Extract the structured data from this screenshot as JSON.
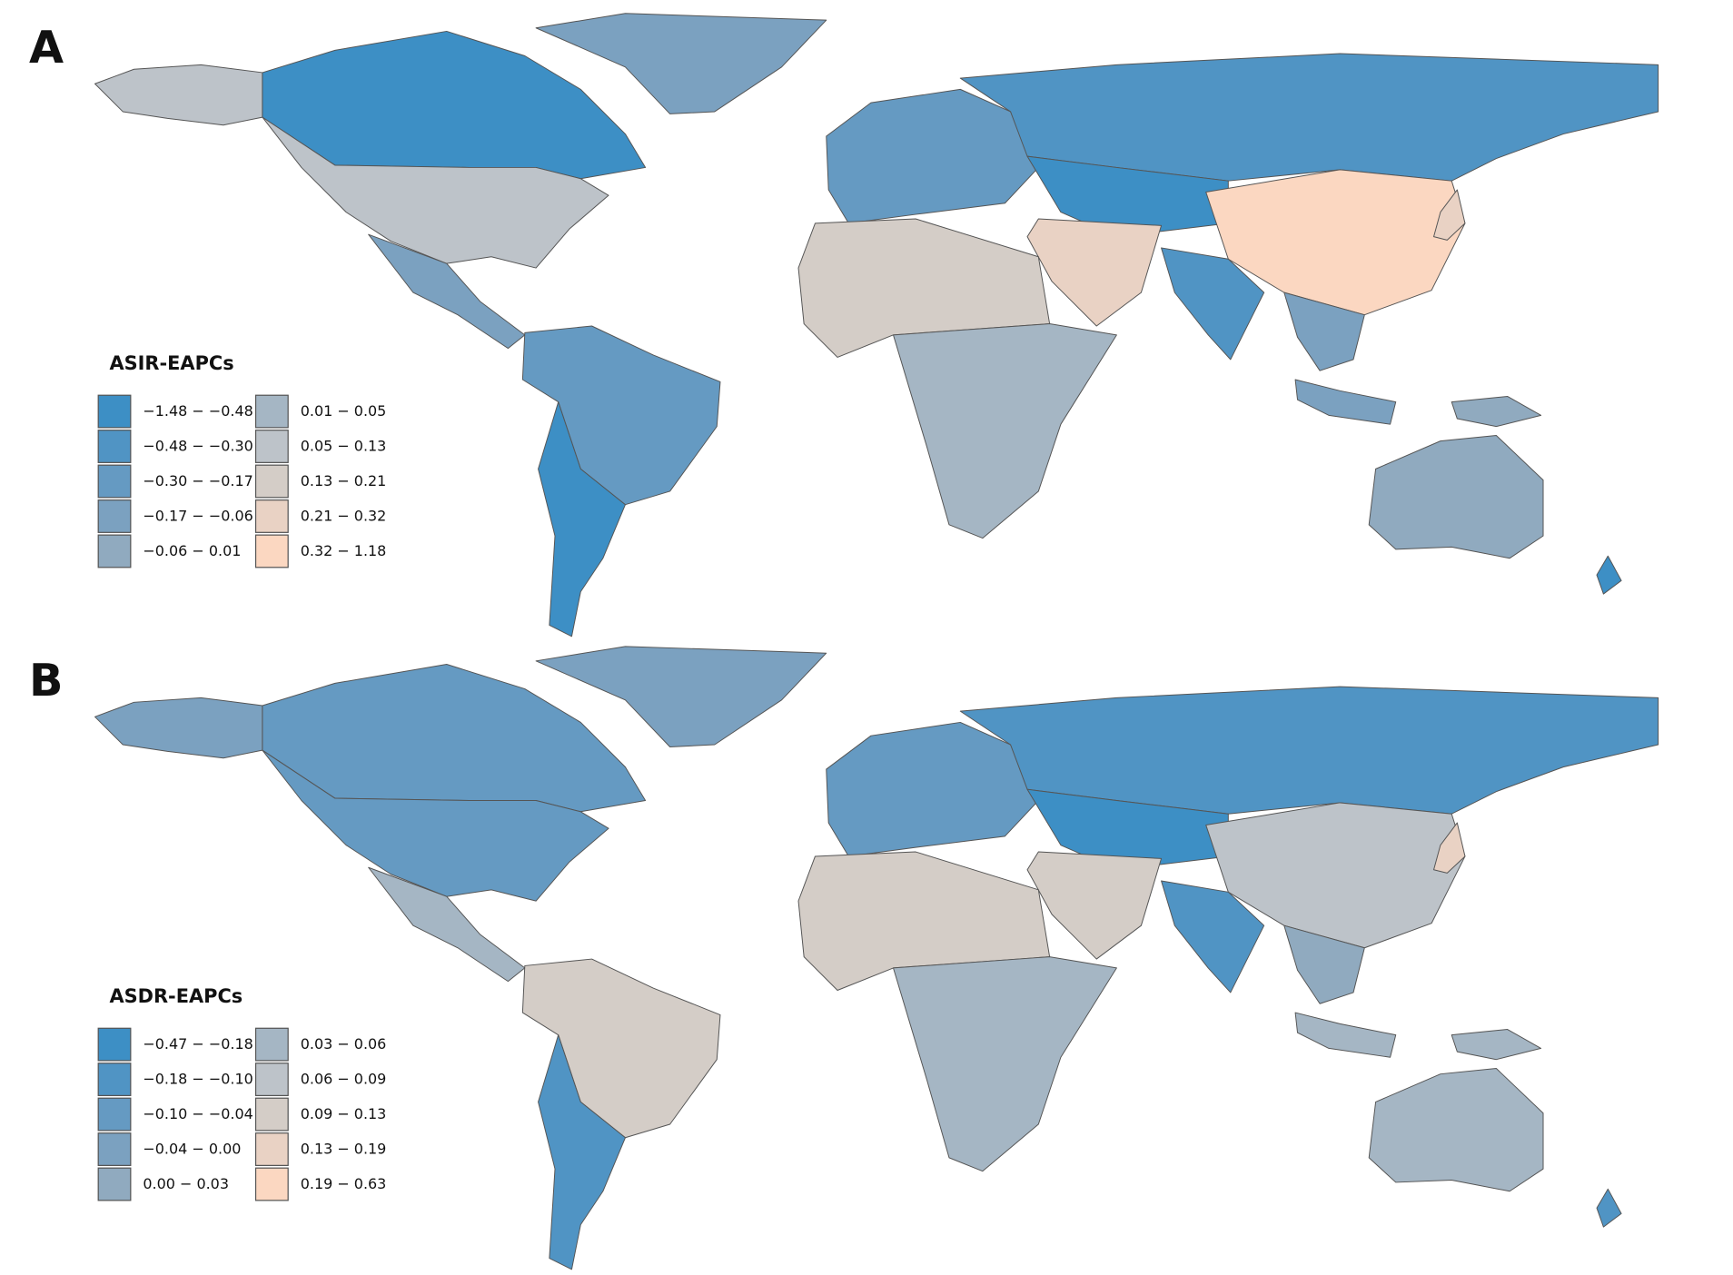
{
  "panels": [
    {
      "label": "A",
      "legend": {
        "title": "ASIR-EAPCs",
        "items": [
          {
            "label": "−1.48 − −0.48",
            "color": "#3d8fc5"
          },
          {
            "label": "−0.48 − −0.30",
            "color": "#5094c4"
          },
          {
            "label": "−0.30 − −0.17",
            "color": "#659ac2"
          },
          {
            "label": "−0.17 − −0.06",
            "color": "#7ba1c0"
          },
          {
            "label": "−0.06 − 0.01",
            "color": "#90aabf"
          },
          {
            "label": "0.01 − 0.05",
            "color": "#a5b6c4"
          },
          {
            "label": "0.05 − 0.13",
            "color": "#bdc3c9"
          },
          {
            "label": "0.13 − 0.21",
            "color": "#d4cdc7"
          },
          {
            "label": "0.21 − 0.32",
            "color": "#e9d2c4"
          },
          {
            "label": "0.32 − 1.18",
            "color": "#fbd7c1"
          }
        ]
      }
    },
    {
      "label": "B",
      "legend": {
        "title": "ASDR-EAPCs",
        "items": [
          {
            "label": "−0.47 − −0.18",
            "color": "#3d8fc5"
          },
          {
            "label": "−0.18 − −0.10",
            "color": "#5094c4"
          },
          {
            "label": "−0.10 − −0.04",
            "color": "#659ac2"
          },
          {
            "label": "−0.04 − 0.00",
            "color": "#7ba1c0"
          },
          {
            "label": "0.00 − 0.03",
            "color": "#90aabf"
          },
          {
            "label": "0.03 − 0.06",
            "color": "#a5b6c4"
          },
          {
            "label": "0.06 − 0.09",
            "color": "#bdc3c9"
          },
          {
            "label": "0.09 − 0.13",
            "color": "#d4cdc7"
          },
          {
            "label": "0.13 − 0.19",
            "color": "#e9d2c4"
          },
          {
            "label": "0.19 − 0.63",
            "color": "#fbd7c1"
          }
        ]
      }
    }
  ]
}
